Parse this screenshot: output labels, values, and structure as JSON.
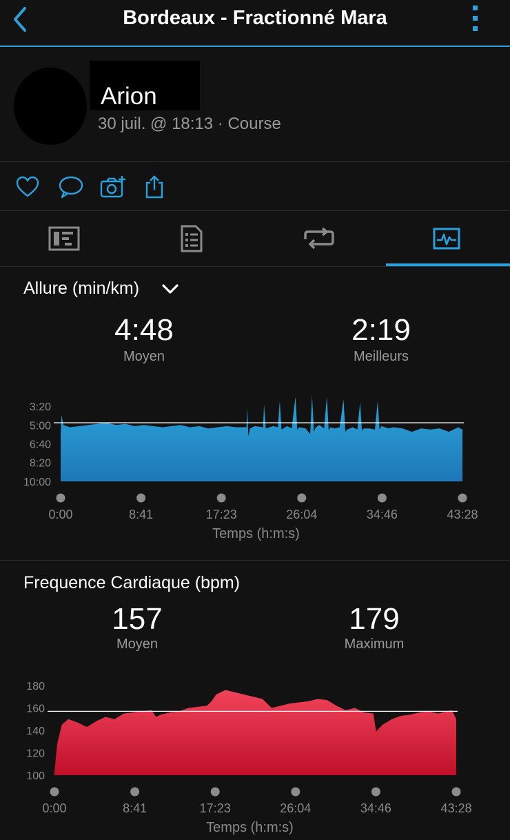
{
  "header": {
    "title": "Bordeaux - Fractionné Mara",
    "back_icon": "chevron-left-icon",
    "more_icon": "more-vertical-icon",
    "accent": "#2ba0dc"
  },
  "profile": {
    "name": "Arion",
    "meta": "30 juil. @ 18:13 · Course"
  },
  "actions": [
    "heart-icon",
    "comment-icon",
    "add-photo-icon",
    "share-icon"
  ],
  "tabs": [
    {
      "icon": "stats-card-icon",
      "active": false
    },
    {
      "icon": "details-list-icon",
      "active": false
    },
    {
      "icon": "laps-icon",
      "active": false
    },
    {
      "icon": "charts-icon",
      "active": true
    }
  ],
  "pace": {
    "title": "Allure (min/km)",
    "avg_value": "4:48",
    "avg_label": "Moyen",
    "best_value": "2:19",
    "best_label": "Meilleurs",
    "xlabel": "Temps (h:m:s)"
  },
  "heart": {
    "title": "Frequence Cardiaque (bpm)",
    "avg_value": "157",
    "avg_label": "Moyen",
    "max_value": "179",
    "max_label": "Maximum",
    "xlabel": "Temps (h:m:s)"
  },
  "chart_data": [
    {
      "type": "area",
      "title": "Allure (min/km)",
      "xlabel": "Temps (h:m:s)",
      "ylabel": "",
      "x_ticks": [
        "0:00",
        "8:41",
        "17:23",
        "26:04",
        "34:46",
        "43:28"
      ],
      "y_ticks": [
        "3:20",
        "5:00",
        "6:40",
        "8:20",
        "10:00"
      ],
      "y_tick_values": [
        3.333,
        5.0,
        6.667,
        8.333,
        10.0
      ],
      "ylim": [
        10.0,
        3.333
      ],
      "xlim_min": [
        0,
        43.47
      ],
      "inverted": true,
      "color": "#2ba0dc",
      "reference_line": 4.8,
      "series": [
        {
          "x": [
            0,
            0.1,
            0.3,
            1,
            2,
            3,
            4,
            5,
            6,
            7,
            8,
            9,
            10,
            11,
            12,
            13,
            14,
            15,
            16,
            17,
            18,
            19,
            20.1,
            20.2,
            20.3,
            20.5,
            21,
            21.9,
            22.0,
            22.2,
            23.0,
            23.5,
            23.7,
            23.9,
            24.5,
            25.0,
            25.4,
            25.6,
            25.8,
            26.5,
            27.0,
            27.2,
            27.4,
            27.6,
            28.0,
            28.5,
            28.8,
            29.0,
            29.2,
            29.6,
            30.2,
            30.6,
            30.8,
            31.0,
            31.6,
            32.1,
            32.4,
            32.6,
            32.8,
            33.4,
            34.0,
            34.3,
            34.5,
            34.7,
            35.5,
            36,
            37,
            38,
            39,
            40,
            41,
            42,
            43,
            43.47
          ],
          "y": [
            5.8,
            4.1,
            5.0,
            5.2,
            5.1,
            5.0,
            4.9,
            4.8,
            5.0,
            4.9,
            5.1,
            5.0,
            5.1,
            5.2,
            5.1,
            5.0,
            5.2,
            5.1,
            5.3,
            5.2,
            5.1,
            5.2,
            5.2,
            3.5,
            6.0,
            5.3,
            5.1,
            5.2,
            3.2,
            5.3,
            5.1,
            5.2,
            2.9,
            5.4,
            5.1,
            5.3,
            2.5,
            5.4,
            5.2,
            5.3,
            5.8,
            2.4,
            5.6,
            5.2,
            5.0,
            5.3,
            2.5,
            5.5,
            5.2,
            5.3,
            5.2,
            2.7,
            5.6,
            5.4,
            5.2,
            5.4,
            3.0,
            5.5,
            5.3,
            5.3,
            5.4,
            2.9,
            5.4,
            5.1,
            5.3,
            5.2,
            5.3,
            5.6,
            5.3,
            5.4,
            5.3,
            5.6,
            5.2,
            5.4
          ]
        }
      ]
    },
    {
      "type": "area",
      "title": "Frequence Cardiaque (bpm)",
      "xlabel": "Temps (h:m:s)",
      "ylabel": "",
      "x_ticks": [
        "0:00",
        "8:41",
        "17:23",
        "26:04",
        "34:46",
        "43:28"
      ],
      "y_ticks": [
        "180",
        "160",
        "140",
        "120",
        "100"
      ],
      "ylim": [
        100,
        180
      ],
      "xlim_min": [
        0,
        43.47
      ],
      "color": "#e5304b",
      "reference_line": 157,
      "series": [
        {
          "x": [
            0,
            0.3,
            0.8,
            1.5,
            2.5,
            3.5,
            4.5,
            5.5,
            6.5,
            7.5,
            8.5,
            9.5,
            10.5,
            11,
            11.5,
            12.5,
            13.5,
            14.5,
            15.5,
            16.5,
            17.0,
            17.5,
            18.5,
            19.5,
            20.5,
            21.5,
            22.5,
            23.5,
            24.5,
            25.5,
            26.5,
            27.5,
            28.5,
            29.5,
            30.5,
            31.5,
            32.5,
            33.5,
            34.5,
            34.8,
            35.5,
            36.5,
            37.5,
            38.5,
            39.5,
            40.5,
            41.5,
            42.5,
            43,
            43.47
          ],
          "y": [
            103,
            128,
            145,
            150,
            147,
            143,
            148,
            152,
            150,
            155,
            156,
            157,
            158,
            152,
            154,
            156,
            157,
            160,
            161,
            162,
            166,
            172,
            176,
            174,
            172,
            170,
            168,
            160,
            162,
            164,
            165,
            166,
            168,
            167,
            162,
            158,
            160,
            156,
            155,
            139,
            145,
            150,
            153,
            154,
            156,
            157,
            155,
            157,
            158,
            150
          ]
        }
      ]
    }
  ]
}
